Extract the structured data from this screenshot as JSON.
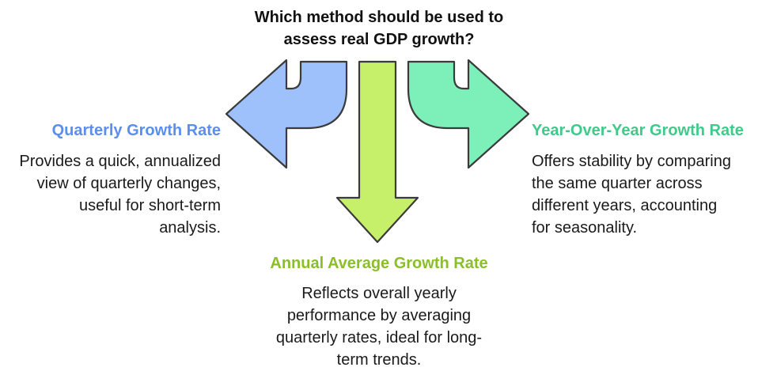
{
  "question": {
    "line1": "Which method should be used to",
    "line2": "assess real GDP growth?"
  },
  "options": {
    "left": {
      "title": "Quarterly Growth Rate",
      "lines": [
        "Provides a quick, annualized",
        "view of quarterly changes,",
        "useful for short-term",
        "analysis."
      ],
      "color": "#9ec0fb"
    },
    "center": {
      "title": "Annual Average Growth Rate",
      "lines": [
        "Reflects overall yearly",
        "performance by averaging",
        "quarterly rates, ideal for long-",
        "term trends."
      ],
      "color": "#c6ef6a"
    },
    "right": {
      "title": "Year-Over-Year Growth Rate",
      "lines": [
        "Offers stability by comparing",
        "the same quarter across",
        "different years, accounting",
        "for seasonality."
      ],
      "color": "#7cf0b8"
    }
  }
}
